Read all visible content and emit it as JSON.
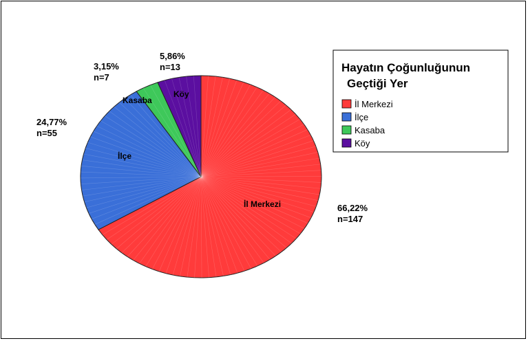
{
  "chart_data": {
    "type": "pie",
    "legend": {
      "title_lines": [
        "Hayatın Çoğunluğunun",
        "Geçtiği Yer"
      ],
      "placement": "right"
    },
    "slices": [
      {
        "label": "İl Merkezi",
        "percent": 66.22,
        "percent_label": "66,22%",
        "n_label": "n=147",
        "color": "#ff3b3b"
      },
      {
        "label": "İlçe",
        "percent": 24.77,
        "percent_label": "24,77%",
        "n_label": "n=55",
        "color": "#3a6fd8"
      },
      {
        "label": "Kasaba",
        "percent": 3.15,
        "percent_label": "3,15%",
        "n_label": "n=7",
        "color": "#3ec85a"
      },
      {
        "label": "Köy",
        "percent": 5.86,
        "percent_label": "5,86%",
        "n_label": "n=13",
        "color": "#5b0fa0"
      }
    ]
  }
}
